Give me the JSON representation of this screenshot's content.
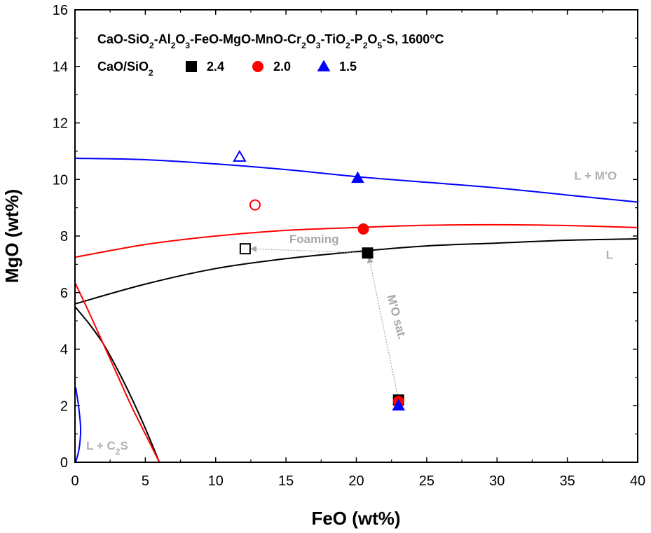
{
  "chart_data": {
    "type": "line",
    "title_parts": [
      {
        "t": "CaO-SiO"
      },
      {
        "t": "2",
        "sub": true
      },
      {
        "t": "-Al"
      },
      {
        "t": "2",
        "sub": true
      },
      {
        "t": "O"
      },
      {
        "t": "3",
        "sub": true
      },
      {
        "t": "-FeO-MgO-MnO-Cr"
      },
      {
        "t": "2",
        "sub": true
      },
      {
        "t": "O"
      },
      {
        "t": "3",
        "sub": true
      },
      {
        "t": "-TiO"
      },
      {
        "t": "2",
        "sub": true
      },
      {
        "t": "-P"
      },
      {
        "t": "2",
        "sub": true
      },
      {
        "t": "O"
      },
      {
        "t": "5",
        "sub": true
      },
      {
        "t": "-S, 1600°C"
      }
    ],
    "legend_label_parts": [
      {
        "t": "CaO/SiO"
      },
      {
        "t": "2",
        "sub": true
      }
    ],
    "xlabel": "FeO (wt%)",
    "ylabel": "MgO (wt%)",
    "xlim": [
      0,
      40
    ],
    "ylim": [
      0,
      16
    ],
    "xticks": [
      0,
      5,
      10,
      15,
      20,
      25,
      30,
      35,
      40
    ],
    "yticks": [
      0,
      2,
      4,
      6,
      8,
      10,
      12,
      14,
      16
    ],
    "grid": false,
    "legend_position": "top-left",
    "colors": {
      "s24": "#000000",
      "s20": "#ff0000",
      "s15": "#0000ff",
      "annot": "#a8a8a8"
    },
    "series": [
      {
        "name": "2.4",
        "color": "#000000",
        "marker": "square",
        "mo_sat_curve": [
          [
            0,
            5.6
          ],
          [
            5,
            6.3
          ],
          [
            10,
            6.85
          ],
          [
            15,
            7.2
          ],
          [
            20,
            7.45
          ],
          [
            25,
            7.65
          ],
          [
            30,
            7.75
          ],
          [
            35,
            7.85
          ],
          [
            40,
            7.9
          ]
        ],
        "c2s_curve": [
          [
            0,
            5.5
          ],
          [
            1,
            4.9
          ],
          [
            2,
            4.2
          ],
          [
            3,
            3.3
          ],
          [
            4,
            2.3
          ],
          [
            5,
            1.2
          ],
          [
            6,
            0
          ]
        ],
        "filled_points": [
          [
            20.8,
            7.4
          ],
          [
            23,
            2.2
          ]
        ],
        "open_points": [
          [
            12.1,
            7.55
          ]
        ]
      },
      {
        "name": "2.0",
        "color": "#ff0000",
        "marker": "circle",
        "mo_sat_curve": [
          [
            0,
            7.25
          ],
          [
            5,
            7.7
          ],
          [
            10,
            8.0
          ],
          [
            15,
            8.2
          ],
          [
            20,
            8.3
          ],
          [
            25,
            8.38
          ],
          [
            30,
            8.4
          ],
          [
            35,
            8.37
          ],
          [
            40,
            8.3
          ]
        ],
        "c2s_curve": [
          [
            0,
            6.35
          ],
          [
            1,
            5.3
          ],
          [
            2,
            4.2
          ],
          [
            3,
            3.1
          ],
          [
            4,
            2.0
          ],
          [
            5,
            1.0
          ],
          [
            6,
            0
          ]
        ],
        "filled_points": [
          [
            20.5,
            8.25
          ],
          [
            23,
            2.15
          ]
        ],
        "open_points": [
          [
            12.8,
            9.1
          ]
        ]
      },
      {
        "name": "1.5",
        "color": "#0000ff",
        "marker": "triangle",
        "mo_sat_curve": [
          [
            0,
            10.75
          ],
          [
            5,
            10.7
          ],
          [
            10,
            10.55
          ],
          [
            15,
            10.35
          ],
          [
            20,
            10.1
          ],
          [
            25,
            9.9
          ],
          [
            30,
            9.7
          ],
          [
            35,
            9.45
          ],
          [
            40,
            9.2
          ]
        ],
        "c2s_curve": [
          [
            0.05,
            2.65
          ],
          [
            0.25,
            2.0
          ],
          [
            0.4,
            1.2
          ],
          [
            0.3,
            0.5
          ],
          [
            0.05,
            0
          ]
        ],
        "filled_points": [
          [
            20.1,
            10.05
          ],
          [
            23,
            2.0
          ]
        ],
        "open_points": [
          [
            11.7,
            10.8
          ]
        ]
      }
    ],
    "annotations": {
      "region_L_MO": {
        "text": "L + M'O",
        "x": 37,
        "y": 10.0
      },
      "region_L": {
        "text": "L",
        "x": 38,
        "y": 7.2
      },
      "region_L_C2S_parts": [
        {
          "t": "L + C"
        },
        {
          "t": "2",
          "sub": true
        },
        {
          "t": "S"
        }
      ],
      "region_L_C2S_pos": {
        "x": 0.8,
        "y": 0.45
      },
      "foaming": {
        "text": "Foaming",
        "x": 17,
        "y": 7.75,
        "arrow_from": [
          20.8,
          7.4
        ],
        "arrow_to": [
          12.5,
          7.55
        ]
      },
      "mo_sat": {
        "text": "M'O sat.",
        "x": 22.6,
        "y": 5.1,
        "arrow_from": [
          23,
          2.2
        ],
        "arrow_to": [
          20.9,
          7.25
        ]
      }
    }
  }
}
